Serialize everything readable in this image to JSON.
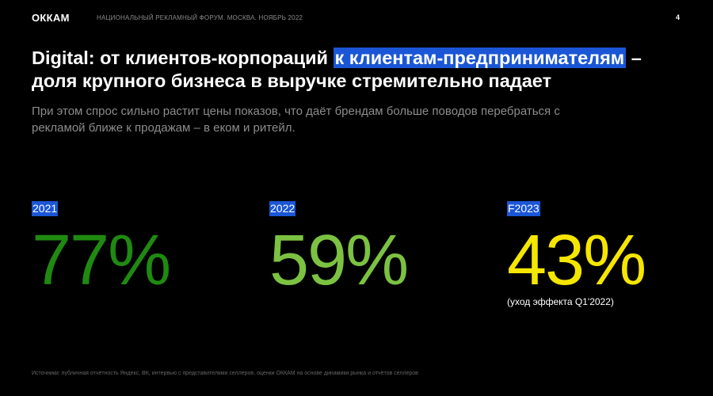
{
  "header": {
    "logo": "ОККАМ",
    "subtitle": "НАЦИОНАЛЬНЫЙ РЕКЛАМНЫЙ ФОРУМ. МОСКВА. НОЯБРЬ 2022",
    "page_number": "4"
  },
  "title": {
    "part1": "Digital: от клиентов-корпораций ",
    "highlight": "к клиентам-предпринимателям",
    "part2": " – доля крупного бизнеса в выручке стремительно падает"
  },
  "subtitle": "При этом спрос сильно растит цены показов, что даёт брендам больше поводов перебраться с рекламой ближе к продажам – в еком и ритейл.",
  "stats": [
    {
      "label": "2021",
      "value": "77%",
      "color": "#1f8a10"
    },
    {
      "label": "2022",
      "value": "59%",
      "color": "#7cc242"
    },
    {
      "label": "F2023",
      "value": "43%",
      "color": "#f5e600",
      "note": "(уход эффекта Q1'2022)"
    }
  ],
  "footer": "Источники: публичная отчётность Яндекс, ВК, интервью с представителями селлеров, оценки ОККАМ на основе динамики рынка и отчётов селлеров"
}
